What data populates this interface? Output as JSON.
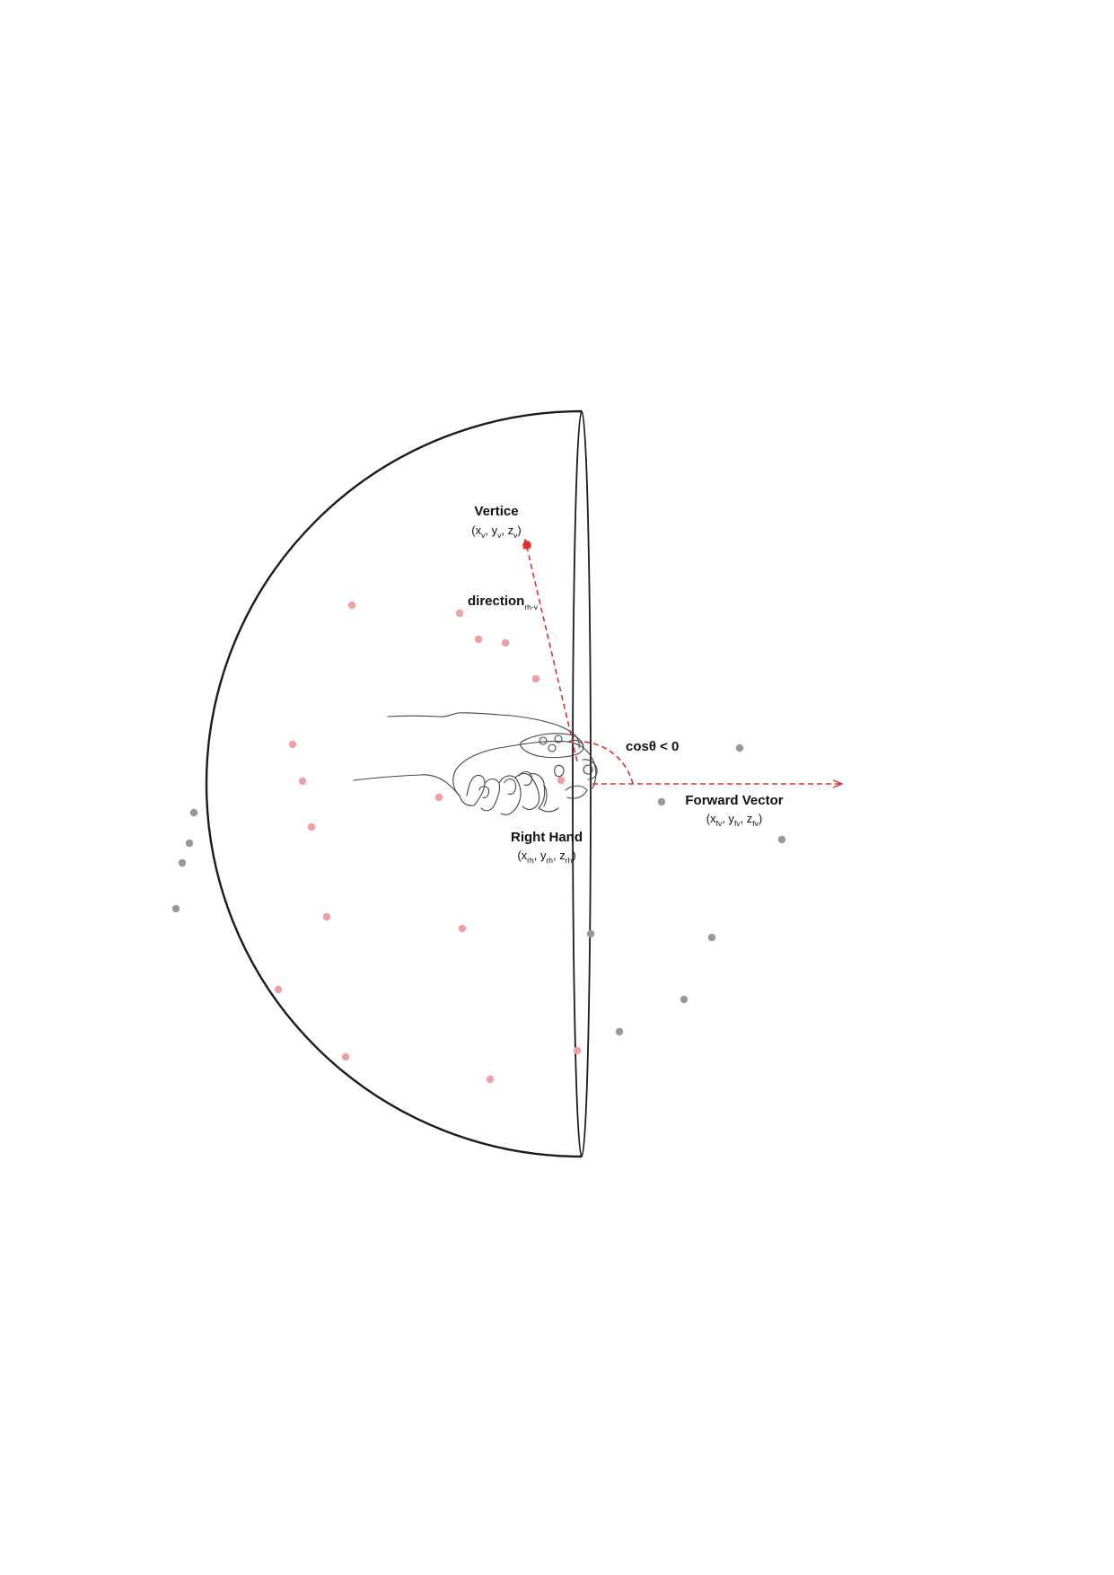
{
  "labels": {
    "vertex": {
      "title": "Vertice",
      "coord_open": "(x",
      "s1": "v",
      "y": ", y",
      "s2": "v",
      "z": ", z",
      "s3": "v",
      "coord_close": ")"
    },
    "direction": {
      "text": "direction",
      "sub": "rh-v"
    },
    "angle": {
      "text": "cosθ < 0"
    },
    "forward": {
      "title": "Forward Vector",
      "coord_open": "(x",
      "s1": "fv",
      "y": ", y",
      "s2": "fv",
      "z": ", z",
      "s3": "fv",
      "coord_close": ")"
    },
    "hand": {
      "title": "Right Hand",
      "coord_open": "(x",
      "s1": "rh",
      "y": ", y",
      "s2": "rh",
      "z": ", z",
      "s3": "rh",
      "coord_close": ")"
    }
  },
  "colors": {
    "outline": "#1a1a1a",
    "accent_red": "#e0312f",
    "inside_point": "#f0a0a0",
    "outside_point": "#999999",
    "background": "#ffffff"
  }
}
